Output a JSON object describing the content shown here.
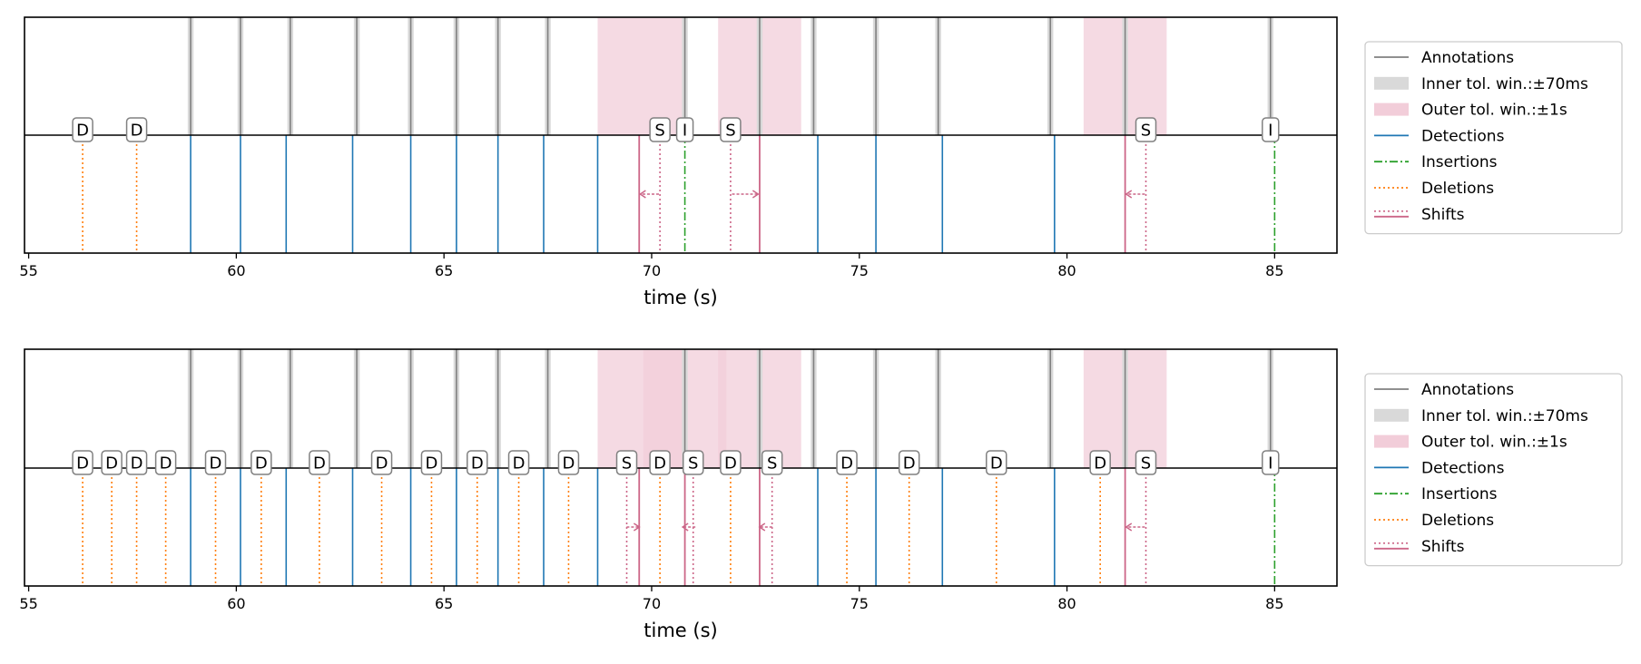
{
  "chart_data": [
    {
      "type": "event-timeline",
      "xlabel": "time (s)",
      "xlim": [
        54.9,
        86.5
      ],
      "xticks": [
        55,
        60,
        65,
        70,
        75,
        80,
        85
      ],
      "xtick_labels": [
        "55",
        "60",
        "65",
        "70",
        "75",
        "80",
        "85"
      ],
      "legend": {
        "placement": "right",
        "entries": [
          {
            "label": "Annotations",
            "kind": "line",
            "color": "#808080"
          },
          {
            "label": "Inner tol. win.:±70ms",
            "kind": "patch",
            "color": "#d9d9d9"
          },
          {
            "label": "Outer tol. win.:±1s",
            "kind": "patch",
            "color": "#f2cdd9"
          },
          {
            "label": "Detections",
            "kind": "line",
            "color": "#1f77b4"
          },
          {
            "label": "Insertions",
            "kind": "dashdot",
            "color": "#2ca02c"
          },
          {
            "label": "Deletions",
            "kind": "dotted",
            "color": "#ff7f0e"
          },
          {
            "label": "Shifts",
            "kind": "dotted+line",
            "color": "#cc6688"
          }
        ]
      },
      "annotations": [
        58.9,
        60.1,
        61.3,
        62.9,
        64.2,
        65.3,
        66.3,
        67.5,
        70.8,
        72.6,
        73.9,
        75.4,
        76.9,
        79.6,
        81.4,
        84.9
      ],
      "outer_windows": [
        [
          68.7,
          70.8
        ],
        [
          71.6,
          73.6
        ],
        [
          80.4,
          82.4
        ]
      ],
      "detections": [
        58.9,
        60.1,
        61.2,
        62.8,
        64.2,
        65.3,
        66.3,
        67.4,
        68.7,
        74.0,
        75.4,
        77.0,
        79.7
      ],
      "insertions": [
        70.8,
        85.0
      ],
      "deletions": [
        56.3,
        57.6
      ],
      "shifts": [
        {
          "from": 70.2,
          "to": 69.7,
          "arrow": "left"
        },
        {
          "from": 71.9,
          "to": 72.6,
          "arrow": "right"
        },
        {
          "from": 81.9,
          "to": 81.4,
          "arrow": "left"
        }
      ],
      "markers": [
        {
          "x": 56.3,
          "label": "D"
        },
        {
          "x": 57.6,
          "label": "D"
        },
        {
          "x": 70.2,
          "label": "S"
        },
        {
          "x": 70.8,
          "label": "I"
        },
        {
          "x": 71.9,
          "label": "S"
        },
        {
          "x": 81.9,
          "label": "S"
        },
        {
          "x": 84.9,
          "label": "I"
        }
      ]
    },
    {
      "type": "event-timeline",
      "xlabel": "time (s)",
      "xlim": [
        54.9,
        86.5
      ],
      "xticks": [
        55,
        60,
        65,
        70,
        75,
        80,
        85
      ],
      "xtick_labels": [
        "55",
        "60",
        "65",
        "70",
        "75",
        "80",
        "85"
      ],
      "legend": {
        "placement": "right",
        "entries": [
          {
            "label": "Annotations",
            "kind": "line",
            "color": "#808080"
          },
          {
            "label": "Inner tol. win.:±70ms",
            "kind": "patch",
            "color": "#d9d9d9"
          },
          {
            "label": "Outer tol. win.:±1s",
            "kind": "patch",
            "color": "#f2cdd9"
          },
          {
            "label": "Detections",
            "kind": "line",
            "color": "#1f77b4"
          },
          {
            "label": "Insertions",
            "kind": "dashdot",
            "color": "#2ca02c"
          },
          {
            "label": "Deletions",
            "kind": "dotted",
            "color": "#ff7f0e"
          },
          {
            "label": "Shifts",
            "kind": "dotted+line",
            "color": "#cc6688"
          }
        ]
      },
      "annotations": [
        58.9,
        60.1,
        61.3,
        62.9,
        64.2,
        65.3,
        66.3,
        67.5,
        70.8,
        72.6,
        73.9,
        75.4,
        76.9,
        79.6,
        81.4,
        84.9
      ],
      "outer_windows": [
        [
          68.7,
          70.8
        ],
        [
          69.8,
          71.8
        ],
        [
          71.6,
          73.6
        ],
        [
          80.4,
          82.4
        ]
      ],
      "detections": [
        58.9,
        60.1,
        61.2,
        62.8,
        64.2,
        65.3,
        66.3,
        67.4,
        68.7,
        74.0,
        75.4,
        77.0,
        79.7
      ],
      "insertions": [
        85.0
      ],
      "deletions": [
        56.3,
        57.0,
        57.6,
        58.3,
        59.5,
        60.6,
        62.0,
        63.5,
        64.7,
        65.8,
        66.8,
        68.0,
        70.2,
        71.9,
        74.7,
        76.2,
        78.3,
        80.8
      ],
      "shifts": [
        {
          "from": 69.4,
          "to": 69.7,
          "arrow": "right"
        },
        {
          "from": 71.0,
          "to": 70.8,
          "arrow": "left"
        },
        {
          "from": 72.9,
          "to": 72.6,
          "arrow": "left"
        },
        {
          "from": 81.9,
          "to": 81.4,
          "arrow": "left"
        }
      ],
      "markers": [
        {
          "x": 56.3,
          "label": "D"
        },
        {
          "x": 57.0,
          "label": "D"
        },
        {
          "x": 57.6,
          "label": "D"
        },
        {
          "x": 58.3,
          "label": "D"
        },
        {
          "x": 59.5,
          "label": "D"
        },
        {
          "x": 60.6,
          "label": "D"
        },
        {
          "x": 62.0,
          "label": "D"
        },
        {
          "x": 63.5,
          "label": "D"
        },
        {
          "x": 64.7,
          "label": "D"
        },
        {
          "x": 65.8,
          "label": "D"
        },
        {
          "x": 66.8,
          "label": "D"
        },
        {
          "x": 68.0,
          "label": "D"
        },
        {
          "x": 69.4,
          "label": "S"
        },
        {
          "x": 70.2,
          "label": "D"
        },
        {
          "x": 71.0,
          "label": "S"
        },
        {
          "x": 71.9,
          "label": "D"
        },
        {
          "x": 72.9,
          "label": "S"
        },
        {
          "x": 74.7,
          "label": "D"
        },
        {
          "x": 76.2,
          "label": "D"
        },
        {
          "x": 78.3,
          "label": "D"
        },
        {
          "x": 80.8,
          "label": "D"
        },
        {
          "x": 81.9,
          "label": "S"
        },
        {
          "x": 84.9,
          "label": "I"
        }
      ]
    }
  ]
}
